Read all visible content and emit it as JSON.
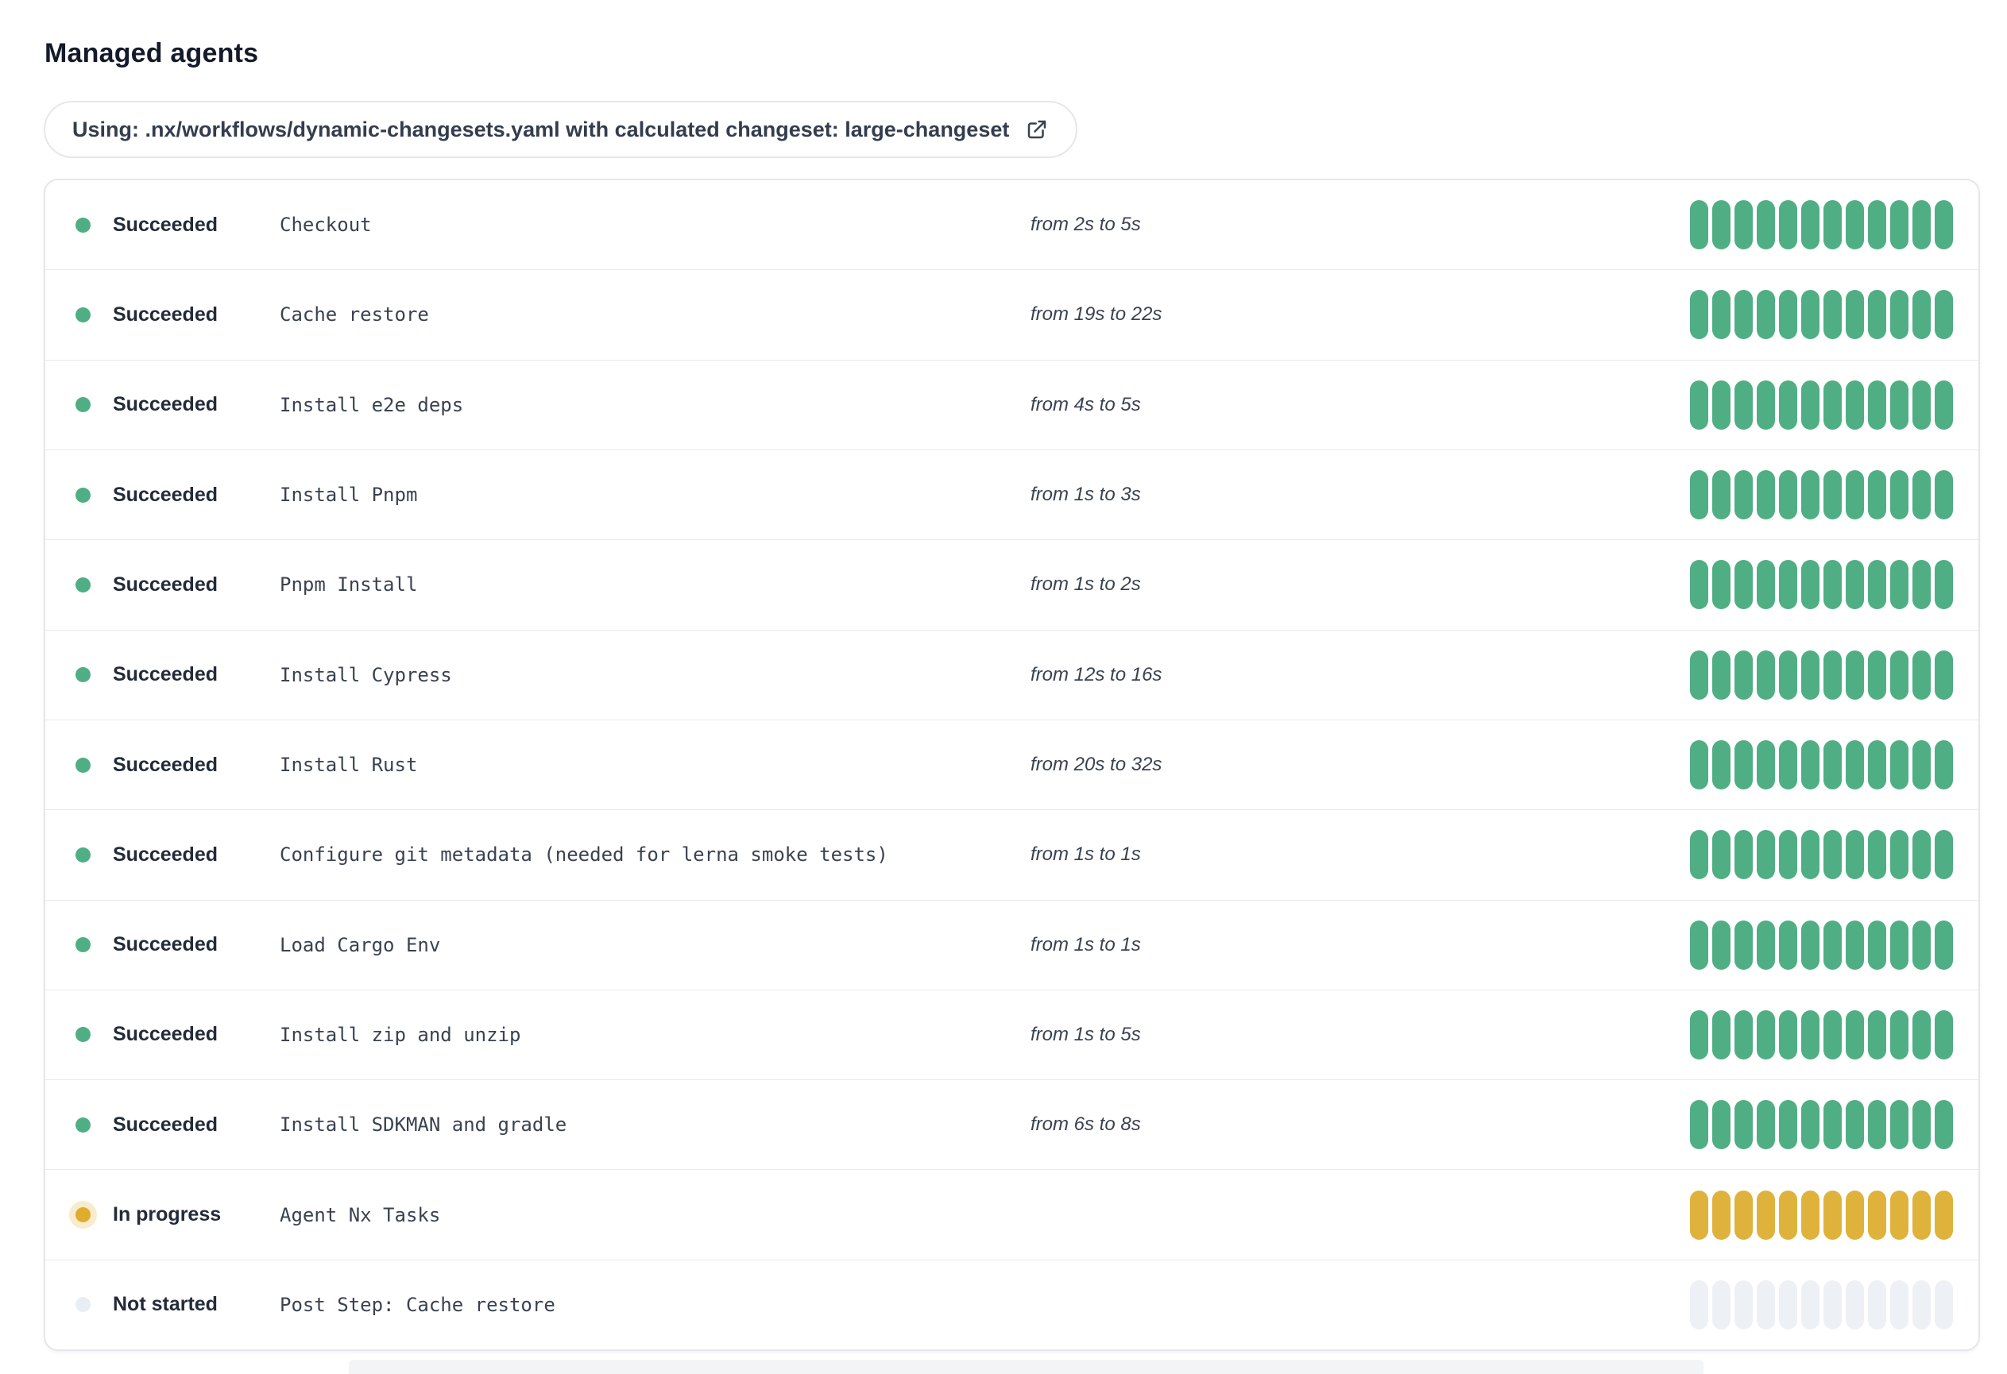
{
  "page": {
    "title": "Managed agents"
  },
  "banner": {
    "text": "Using: .nx/workflows/dynamic-changesets.yaml with calculated changeset: large-changeset",
    "icon": "external-link-icon"
  },
  "colors": {
    "succeeded": "#4FAE84",
    "in_progress_bar": "#DFB23C",
    "in_progress_dot": "#DFAC2D",
    "in_progress_halo": "#F7EDCE",
    "not_started": "#EDF1F6",
    "not_started_dot": "#E9EEF4",
    "status_text": "#232B3A",
    "body_text": "#3A4250",
    "title_text": "#141A2B"
  },
  "agents": {
    "bar_count": 12,
    "rows": [
      {
        "status": "Succeeded",
        "status_key": "succeeded",
        "name": "Checkout",
        "duration": "from 2s to 5s"
      },
      {
        "status": "Succeeded",
        "status_key": "succeeded",
        "name": "Cache restore",
        "duration": "from 19s to 22s"
      },
      {
        "status": "Succeeded",
        "status_key": "succeeded",
        "name": "Install e2e deps",
        "duration": "from 4s to 5s"
      },
      {
        "status": "Succeeded",
        "status_key": "succeeded",
        "name": "Install Pnpm",
        "duration": "from 1s to 3s"
      },
      {
        "status": "Succeeded",
        "status_key": "succeeded",
        "name": "Pnpm Install",
        "duration": "from 1s to 2s"
      },
      {
        "status": "Succeeded",
        "status_key": "succeeded",
        "name": "Install Cypress",
        "duration": "from 12s to 16s"
      },
      {
        "status": "Succeeded",
        "status_key": "succeeded",
        "name": "Install Rust",
        "duration": "from 20s to 32s"
      },
      {
        "status": "Succeeded",
        "status_key": "succeeded",
        "name": "Configure git metadata (needed for lerna smoke tests)",
        "duration": "from 1s to 1s"
      },
      {
        "status": "Succeeded",
        "status_key": "succeeded",
        "name": "Load Cargo Env",
        "duration": "from 1s to 1s"
      },
      {
        "status": "Succeeded",
        "status_key": "succeeded",
        "name": "Install zip and unzip",
        "duration": "from 1s to 5s"
      },
      {
        "status": "Succeeded",
        "status_key": "succeeded",
        "name": "Install SDKMAN and gradle",
        "duration": "from 6s to 8s"
      },
      {
        "status": "In progress",
        "status_key": "in_progress",
        "name": "Agent Nx Tasks",
        "duration": ""
      },
      {
        "status": "Not started",
        "status_key": "not_started",
        "name": "Post Step: Cache restore",
        "duration": ""
      }
    ]
  }
}
